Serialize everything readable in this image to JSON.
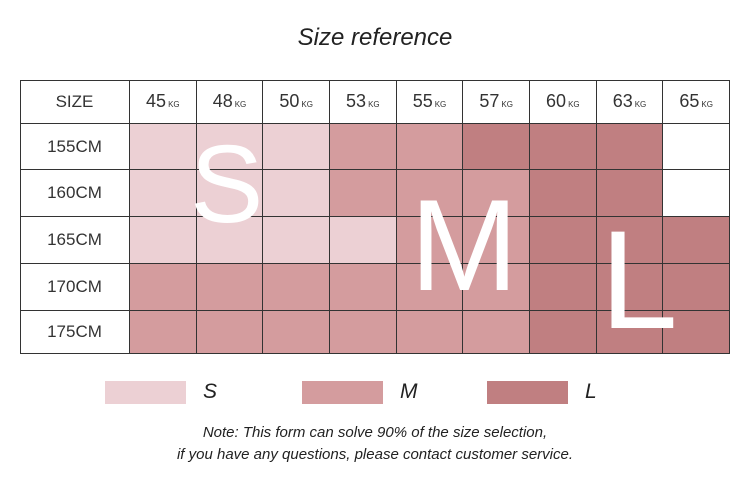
{
  "title": "Size reference",
  "table": {
    "corner": "SIZE",
    "weights": [
      {
        "number": "45",
        "unit": "KG"
      },
      {
        "number": "48",
        "unit": "KG"
      },
      {
        "number": "50",
        "unit": "KG"
      },
      {
        "number": "53",
        "unit": "KG"
      },
      {
        "number": "55",
        "unit": "KG"
      },
      {
        "number": "57",
        "unit": "KG"
      },
      {
        "number": "60",
        "unit": "KG"
      },
      {
        "number": "63",
        "unit": "KG"
      },
      {
        "number": "65",
        "unit": "KG"
      }
    ],
    "rows": [
      {
        "height": "155CM",
        "sizes": [
          0,
          0,
          0,
          1,
          1,
          2,
          2,
          2,
          null
        ]
      },
      {
        "height": "160CM",
        "sizes": [
          0,
          0,
          0,
          1,
          1,
          1,
          2,
          2,
          null
        ]
      },
      {
        "height": "165CM",
        "sizes": [
          0,
          0,
          0,
          0,
          1,
          1,
          2,
          2,
          2
        ]
      },
      {
        "height": "170CM",
        "sizes": [
          1,
          1,
          1,
          1,
          1,
          1,
          2,
          2,
          2
        ]
      },
      {
        "height": "175CM",
        "sizes": [
          1,
          1,
          1,
          1,
          1,
          1,
          2,
          2,
          2
        ]
      }
    ]
  },
  "legend": [
    {
      "label": "S",
      "color": "#ecd0d4"
    },
    {
      "label": "M",
      "color": "#d49c9e"
    },
    {
      "label": "L",
      "color": "#c07f81"
    }
  ],
  "note": [
    "Note: This form can solve 90% of the size selection,",
    "if you have any questions, please contact customer service."
  ]
}
